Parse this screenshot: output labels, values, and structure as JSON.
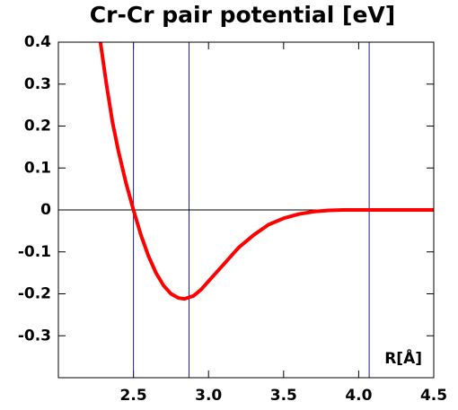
{
  "chart_data": {
    "type": "line",
    "title": "Cr-Cr pair potential [eV]",
    "annotation": "R[Å]",
    "x": [
      2.28,
      2.32,
      2.36,
      2.4,
      2.45,
      2.5,
      2.55,
      2.6,
      2.65,
      2.7,
      2.75,
      2.8,
      2.84,
      2.9,
      2.95,
      3.0,
      3.1,
      3.2,
      3.3,
      3.4,
      3.5,
      3.6,
      3.7,
      3.8,
      3.9,
      4.1,
      4.5
    ],
    "series": [
      {
        "name": "Cr-Cr",
        "color": "#ff0000",
        "values": [
          0.4,
          0.3,
          0.21,
          0.14,
          0.065,
          0.0,
          -0.06,
          -0.11,
          -0.15,
          -0.18,
          -0.2,
          -0.21,
          -0.212,
          -0.205,
          -0.19,
          -0.17,
          -0.13,
          -0.09,
          -0.06,
          -0.035,
          -0.02,
          -0.01,
          -0.004,
          -0.001,
          0,
          0,
          0
        ]
      }
    ],
    "xlim": [
      2.0,
      4.5
    ],
    "xticks": [
      {
        "value": 2.5,
        "label": "2.5"
      },
      {
        "value": 3.0,
        "label": "3.0"
      },
      {
        "value": 3.5,
        "label": "3.5"
      },
      {
        "value": 4.0,
        "label": "4.0"
      },
      {
        "value": 4.5,
        "label": "4.5"
      }
    ],
    "ylim": [
      -0.4,
      0.4
    ],
    "yticks": [
      -0.3,
      -0.2,
      -0.1,
      0,
      0.1,
      0.2,
      0.3,
      0.4
    ],
    "vlines": [
      2.5,
      2.87,
      4.07
    ],
    "vline_color": "#1a237e",
    "hlines": [
      0
    ],
    "hline_color": "#000000"
  }
}
